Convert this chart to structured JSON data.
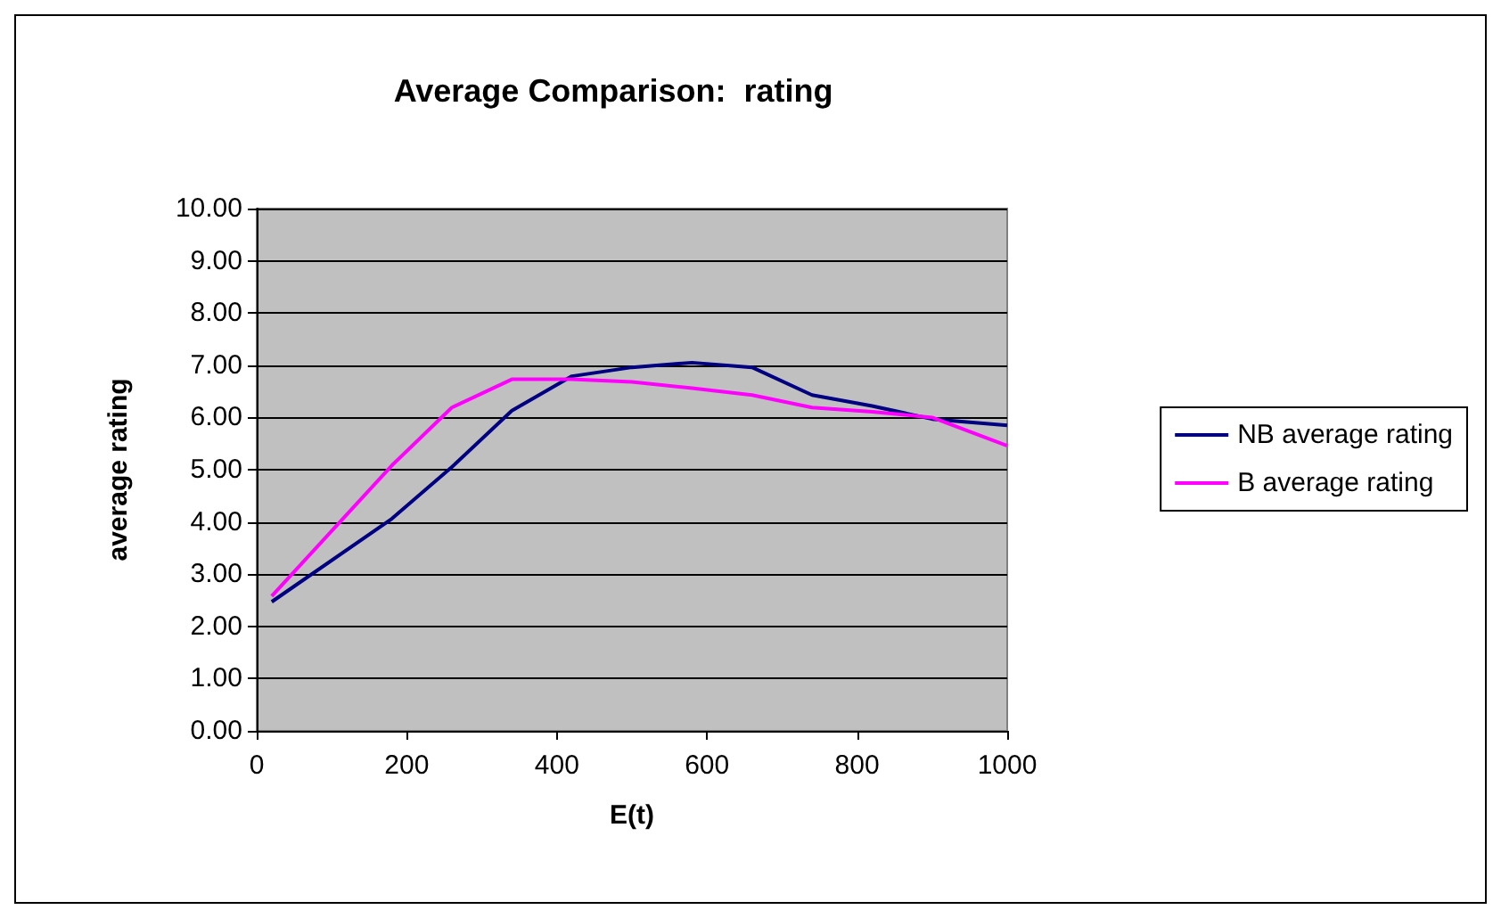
{
  "chart_data": {
    "type": "line",
    "title": "Average Comparison:  rating",
    "xlabel": "E(t)",
    "ylabel": "average rating",
    "x": [
      20,
      180,
      260,
      340,
      420,
      500,
      580,
      660,
      740,
      820,
      900,
      1000
    ],
    "series": [
      {
        "name": "NB average rating",
        "color": "#000080",
        "values": [
          2.47,
          4.06,
          5.05,
          6.13,
          6.79,
          6.96,
          7.05,
          6.96,
          6.43,
          6.22,
          5.97,
          5.85
        ]
      },
      {
        "name": "B average rating",
        "color": "#ff00ff",
        "values": [
          2.58,
          5.08,
          6.19,
          6.73,
          6.73,
          6.68,
          6.56,
          6.43,
          6.19,
          6.11,
          6.0,
          5.46
        ]
      }
    ],
    "xlim": [
      0,
      1000
    ],
    "xticks": [
      0,
      200,
      400,
      600,
      800,
      1000
    ],
    "ylim": [
      0,
      10
    ],
    "yticks": [
      {
        "value": 0,
        "label": "0.00"
      },
      {
        "value": 1,
        "label": "1.00"
      },
      {
        "value": 2,
        "label": "2.00"
      },
      {
        "value": 3,
        "label": "3.00"
      },
      {
        "value": 4,
        "label": "4.00"
      },
      {
        "value": 5,
        "label": "5.00"
      },
      {
        "value": 6,
        "label": "6.00"
      },
      {
        "value": 7,
        "label": "7.00"
      },
      {
        "value": 8,
        "label": "8.00"
      },
      {
        "value": 9,
        "label": "9.00"
      },
      {
        "value": 10,
        "label": "10.00"
      }
    ],
    "grid": "y",
    "legend": "right",
    "marker": "none",
    "line_style": "solid"
  }
}
